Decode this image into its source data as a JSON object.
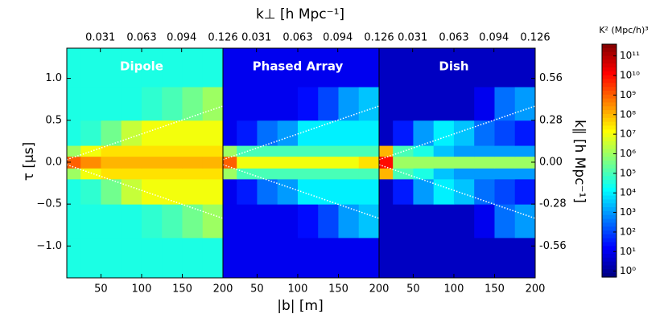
{
  "chart_data": {
    "type": "heatmap",
    "xlabel": "|b| [m]",
    "ylabel": "τ [μs]",
    "x2label": "k⊥ [h Mpc⁻¹]",
    "y2label": "k∥ [h Mpc⁻¹]",
    "xlim": [
      8,
      200
    ],
    "xticks": [
      50,
      100,
      150,
      200
    ],
    "x2lim": [
      0.005,
      0.126
    ],
    "x2ticks": [
      0.031,
      0.063,
      0.094,
      0.126
    ],
    "ylim": [
      -1.38,
      1.36
    ],
    "yticks": [
      {
        "value": -1.0,
        "label": "−1.0"
      },
      {
        "value": -0.5,
        "label": "−0.5"
      },
      {
        "value": 0,
        "label": "0.0"
      },
      {
        "value": 0.5,
        "label": "0.5"
      },
      {
        "value": 1.0,
        "label": "1.0"
      }
    ],
    "y2lim": [
      -0.773,
      0.762
    ],
    "y2ticks": [
      {
        "value": -0.56,
        "label": "-0.56"
      },
      {
        "value": -0.28,
        "label": "-0.28"
      },
      {
        "value": 0,
        "label": "0.00"
      },
      {
        "value": 0.28,
        "label": "0.28"
      },
      {
        "value": 0.56,
        "label": "0.56"
      }
    ],
    "x_bins": [
      8,
      25,
      50,
      75,
      100,
      125,
      150,
      175,
      200
    ],
    "y_bins": [
      -1.38,
      -0.9,
      -0.5,
      -0.2,
      -0.07,
      0.07,
      0.2,
      0.5,
      0.9,
      1.36
    ],
    "colormap": "jet",
    "log_color": true,
    "colorbar": {
      "title": "K² (Mpc/h)³",
      "clim": [
        0.5,
        400000000000
      ],
      "ticks": [
        {
          "value": 1,
          "label": "10⁰"
        },
        {
          "value": 10,
          "label": "10¹"
        },
        {
          "value": 100,
          "label": "10²"
        },
        {
          "value": 1000,
          "label": "10³"
        },
        {
          "value": 10000,
          "label": "10⁴"
        },
        {
          "value": 100000,
          "label": "10⁵"
        },
        {
          "value": 1000000,
          "label": "10⁶"
        },
        {
          "value": 10000000,
          "label": "10⁷"
        },
        {
          "value": 100000000,
          "label": "10⁸"
        },
        {
          "value": 1000000000,
          "label": "10⁹"
        },
        {
          "value": 10000000000,
          "label": "10¹⁰"
        },
        {
          "value": 100000000000,
          "label": "10¹¹"
        }
      ]
    },
    "panels": [
      {
        "title": "Dipole",
        "horizon": {
          "x": [
            8,
            200
          ],
          "upper": [
            0.03,
            0.67
          ],
          "lower": [
            -0.03,
            -0.67
          ]
        },
        "values": [
          [
            30000,
            30000,
            30000,
            30000,
            30000,
            30000,
            30000,
            30000
          ],
          [
            30000,
            30000,
            30000,
            30000,
            50000,
            100000,
            300000,
            1000000
          ],
          [
            30000,
            50000,
            300000,
            3000000,
            10000000,
            10000000,
            10000000,
            10000000
          ],
          [
            1000000,
            10000000,
            30000000,
            30000000,
            30000000,
            30000000,
            30000000,
            30000000
          ],
          [
            1000000000,
            300000000,
            100000000,
            100000000,
            100000000,
            100000000,
            100000000,
            100000000
          ],
          [
            1000000,
            10000000,
            30000000,
            30000000,
            30000000,
            30000000,
            30000000,
            30000000
          ],
          [
            30000,
            50000,
            300000,
            3000000,
            10000000,
            10000000,
            10000000,
            10000000
          ],
          [
            30000,
            30000,
            30000,
            30000,
            50000,
            100000,
            300000,
            1000000
          ],
          [
            30000,
            30000,
            30000,
            30000,
            30000,
            30000,
            30000,
            30000
          ]
        ]
      },
      {
        "title": "Phased Array",
        "horizon": {
          "x": [
            8,
            200
          ],
          "upper": [
            0.03,
            0.67
          ],
          "lower": [
            -0.03,
            -0.67
          ]
        },
        "values": [
          [
            10,
            10,
            10,
            10,
            10,
            10,
            10,
            10
          ],
          [
            10,
            10,
            10,
            10,
            20,
            100,
            1000,
            3000
          ],
          [
            10,
            30,
            300,
            1000,
            10000,
            10000,
            10000,
            10000
          ],
          [
            1000000,
            100000,
            100000,
            100000,
            100000,
            100000,
            100000,
            100000
          ],
          [
            1000000000,
            10000000,
            10000000,
            10000000,
            10000000,
            10000000,
            10000000,
            30000000
          ],
          [
            1000000,
            100000,
            100000,
            100000,
            100000,
            100000,
            100000,
            100000
          ],
          [
            10,
            30,
            300,
            1000,
            10000,
            10000,
            10000,
            10000
          ],
          [
            10,
            10,
            10,
            10,
            20,
            100,
            1000,
            3000
          ],
          [
            10,
            10,
            10,
            10,
            10,
            10,
            10,
            10
          ]
        ]
      },
      {
        "title": "Dish",
        "horizon": {
          "x": [
            8,
            200
          ],
          "upper": [
            0.03,
            0.67
          ],
          "lower": [
            -0.03,
            -0.67
          ]
        },
        "values": [
          [
            3,
            3,
            3,
            3,
            3,
            3,
            3,
            3
          ],
          [
            3,
            3,
            3,
            3,
            3,
            10,
            300,
            1000
          ],
          [
            3,
            30,
            1000,
            10000,
            3000,
            300,
            100,
            30
          ],
          [
            100000000,
            100000,
            30000,
            3000,
            1000,
            1000,
            1000,
            1000
          ],
          [
            10000000000,
            1000000,
            1000000,
            1000000,
            1000000,
            1000000,
            1000000,
            1000000
          ],
          [
            100000000,
            100000,
            30000,
            3000,
            1000,
            1000,
            1000,
            1000
          ],
          [
            3,
            30,
            1000,
            10000,
            3000,
            300,
            100,
            30
          ],
          [
            3,
            3,
            3,
            3,
            3,
            10,
            300,
            1000
          ],
          [
            3,
            3,
            3,
            3,
            3,
            3,
            3,
            3
          ]
        ]
      }
    ]
  }
}
